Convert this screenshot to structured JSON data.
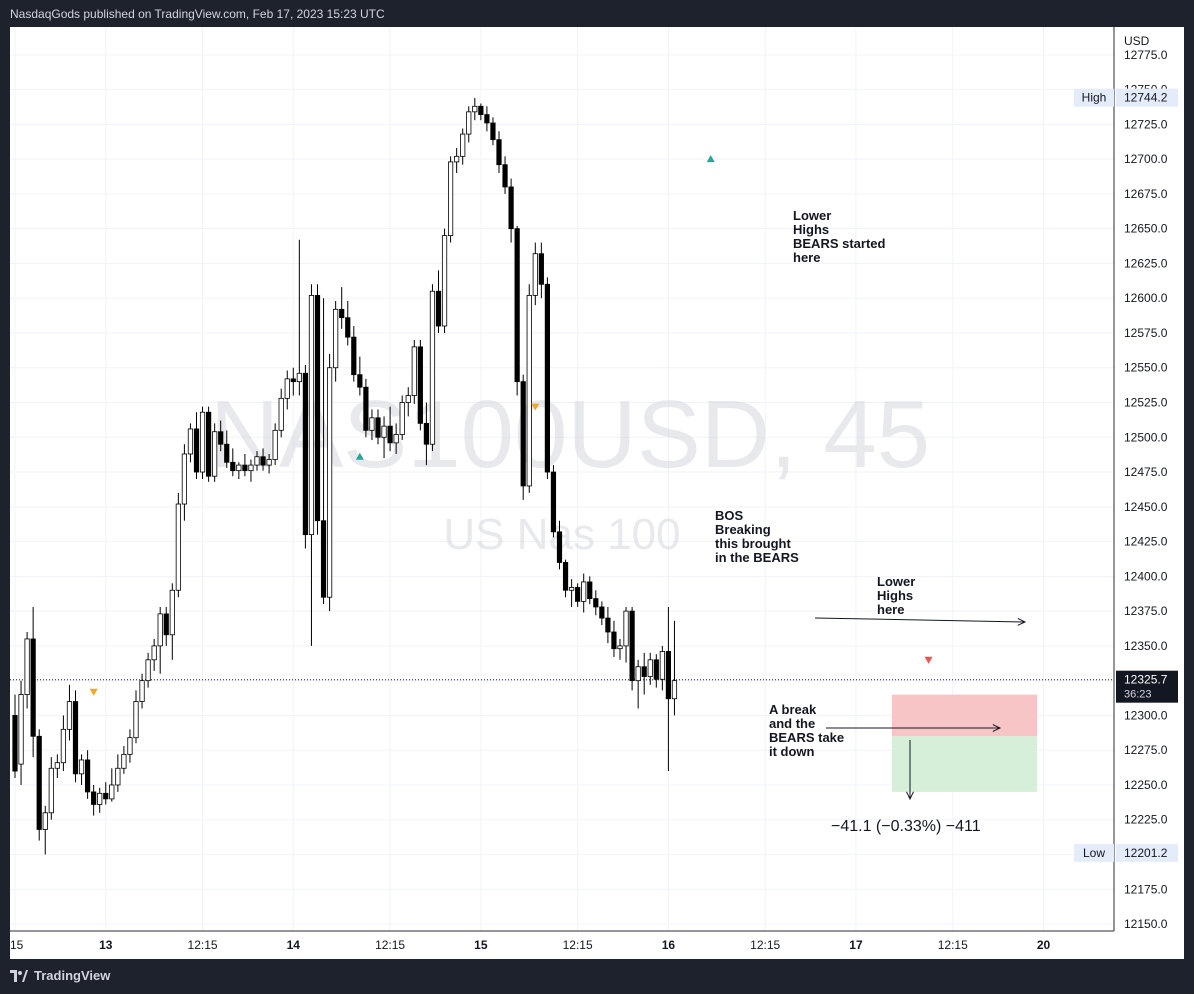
{
  "header": {
    "published": "NasdaqGods published on TradingView.com, Feb 17, 2023 15:23 UTC"
  },
  "footer": {
    "brand": "TradingView"
  },
  "chart_data": {
    "type": "candlestick",
    "symbol_watermark": "NAS100USD, 45",
    "subtitle_watermark": "US Nas 100",
    "currency": "USD",
    "y_ticks": [
      "12775.0",
      "12750.0",
      "12725.0",
      "12700.0",
      "12675.0",
      "12650.0",
      "12625.0",
      "12600.0",
      "12575.0",
      "12550.0",
      "12525.0",
      "12500.0",
      "12475.0",
      "12450.0",
      "12425.0",
      "12400.0",
      "12375.0",
      "12350.0",
      "12325.0",
      "12300.0",
      "12275.0",
      "12250.0",
      "12225.0",
      "12200.0",
      "12175.0",
      "12150.0"
    ],
    "y_tick_values": [
      12775,
      12750,
      12725,
      12700,
      12675,
      12650,
      12625,
      12600,
      12575,
      12550,
      12525,
      12500,
      12475,
      12450,
      12425,
      12400,
      12375,
      12350,
      12325,
      12300,
      12275,
      12250,
      12225,
      12200,
      12175,
      12150
    ],
    "ylim": [
      12145,
      12795
    ],
    "x_ticks": [
      {
        "label": ":15",
        "slot": 0
      },
      {
        "label": "13",
        "slot": 15
      },
      {
        "label": "12:15",
        "slot": 31
      },
      {
        "label": "14",
        "slot": 46
      },
      {
        "label": "12:15",
        "slot": 62
      },
      {
        "label": "15",
        "slot": 77
      },
      {
        "label": "12:15",
        "slot": 93
      },
      {
        "label": "16",
        "slot": 108
      },
      {
        "label": "12:15",
        "slot": 124
      },
      {
        "label": "17",
        "slot": 139
      },
      {
        "label": "12:15",
        "slot": 155
      },
      {
        "label": "20",
        "slot": 170
      }
    ],
    "high": {
      "label": "High",
      "value": "12744.2"
    },
    "low": {
      "label": "Low",
      "value": "12201.2"
    },
    "last": {
      "value": "12325.7",
      "countdown": "36:23",
      "price": 12325.7
    },
    "annotations": [
      {
        "text": [
          "Lower",
          "Highs",
          "BEARS started",
          "here"
        ]
      },
      {
        "text": [
          "BOS",
          "Breaking",
          "this brought",
          "in the BEARS"
        ]
      },
      {
        "text": [
          "Lower",
          "Highs",
          "here"
        ]
      },
      {
        "text": [
          "A break",
          "and the",
          "BEARS take",
          "it down"
        ]
      }
    ],
    "position_label": "−41.1 (−0.33%) −411",
    "position": {
      "entry": 12305,
      "stop": 12285,
      "target": 12245
    },
    "colors": {
      "up": "#ffffff",
      "down": "#000000",
      "stop_zone": "#f7c5c5",
      "target_zone": "#d6efd8",
      "axis_bg": "#ffffff",
      "high_low_tag": "#e3ecf8"
    },
    "candles": [
      [
        12300,
        12315,
        12255,
        12260
      ],
      [
        12265,
        12325,
        12250,
        12315
      ],
      [
        12315,
        12360,
        12305,
        12355
      ],
      [
        12355,
        12378,
        12270,
        12285
      ],
      [
        12285,
        12290,
        12210,
        12218
      ],
      [
        12218,
        12235,
        12200,
        12230
      ],
      [
        12230,
        12270,
        12225,
        12262
      ],
      [
        12262,
        12272,
        12255,
        12266
      ],
      [
        12266,
        12300,
        12260,
        12290
      ],
      [
        12290,
        12322,
        12282,
        12310
      ],
      [
        12310,
        12318,
        12252,
        12258
      ],
      [
        12258,
        12272,
        12250,
        12268
      ],
      [
        12268,
        12275,
        12240,
        12245
      ],
      [
        12245,
        12250,
        12228,
        12236
      ],
      [
        12236,
        12248,
        12230,
        12244
      ],
      [
        12244,
        12252,
        12236,
        12240
      ],
      [
        12240,
        12262,
        12238,
        12250
      ],
      [
        12250,
        12272,
        12245,
        12262
      ],
      [
        12262,
        12278,
        12258,
        12272
      ],
      [
        12272,
        12290,
        12266,
        12284
      ],
      [
        12284,
        12318,
        12280,
        12310
      ],
      [
        12310,
        12330,
        12305,
        12325
      ],
      [
        12325,
        12345,
        12320,
        12340
      ],
      [
        12340,
        12355,
        12332,
        12350
      ],
      [
        12350,
        12378,
        12330,
        12373
      ],
      [
        12373,
        12378,
        12350,
        12358
      ],
      [
        12358,
        12395,
        12340,
        12390
      ],
      [
        12390,
        12460,
        12385,
        12452
      ],
      [
        12452,
        12495,
        12440,
        12488
      ],
      [
        12488,
        12510,
        12482,
        12506
      ],
      [
        12506,
        12518,
        12470,
        12475
      ],
      [
        12475,
        12522,
        12470,
        12518
      ],
      [
        12518,
        12522,
        12468,
        12472
      ],
      [
        12472,
        12510,
        12468,
        12504
      ],
      [
        12504,
        12512,
        12490,
        12495
      ],
      [
        12495,
        12505,
        12478,
        12482
      ],
      [
        12482,
        12492,
        12472,
        12476
      ],
      [
        12476,
        12482,
        12470,
        12480
      ],
      [
        12480,
        12488,
        12472,
        12476
      ],
      [
        12476,
        12484,
        12468,
        12480
      ],
      [
        12480,
        12490,
        12476,
        12486
      ],
      [
        12486,
        12492,
        12476,
        12480
      ],
      [
        12480,
        12488,
        12474,
        12484
      ],
      [
        12484,
        12510,
        12480,
        12505
      ],
      [
        12505,
        12535,
        12500,
        12528
      ],
      [
        12528,
        12548,
        12520,
        12542
      ],
      [
        12542,
        12550,
        12530,
        12540
      ],
      [
        12540,
        12642,
        12530,
        12546
      ],
      [
        12546,
        12552,
        12420,
        12430
      ],
      [
        12430,
        12610,
        12350,
        12602
      ],
      [
        12602,
        12610,
        12430,
        12440
      ],
      [
        12440,
        12600,
        12380,
        12385
      ],
      [
        12385,
        12560,
        12375,
        12550
      ],
      [
        12550,
        12598,
        12540,
        12592
      ],
      [
        12592,
        12608,
        12578,
        12586
      ],
      [
        12586,
        12598,
        12566,
        12572
      ],
      [
        12572,
        12580,
        12540,
        12545
      ],
      [
        12545,
        12558,
        12530,
        12536
      ],
      [
        12536,
        12542,
        12500,
        12505
      ],
      [
        12505,
        12520,
        12498,
        12514
      ],
      [
        12514,
        12520,
        12495,
        12500
      ],
      [
        12500,
        12515,
        12485,
        12508
      ],
      [
        12508,
        12522,
        12490,
        12496
      ],
      [
        12496,
        12510,
        12488,
        12502
      ],
      [
        12502,
        12530,
        12498,
        12525
      ],
      [
        12525,
        12536,
        12515,
        12530
      ],
      [
        12530,
        12570,
        12524,
        12565
      ],
      [
        12565,
        12570,
        12505,
        12510
      ],
      [
        12510,
        12525,
        12480,
        12495
      ],
      [
        12495,
        12610,
        12490,
        12605
      ],
      [
        12605,
        12620,
        12575,
        12580
      ],
      [
        12580,
        12650,
        12575,
        12645
      ],
      [
        12645,
        12702,
        12640,
        12698
      ],
      [
        12698,
        12708,
        12690,
        12702
      ],
      [
        12702,
        12722,
        12696,
        12718
      ],
      [
        12718,
        12738,
        12712,
        12734
      ],
      [
        12734,
        12744,
        12728,
        12738
      ],
      [
        12738,
        12740,
        12728,
        12732
      ],
      [
        12732,
        12738,
        12720,
        12726
      ],
      [
        12726,
        12730,
        12710,
        12714
      ],
      [
        12714,
        12720,
        12690,
        12696
      ],
      [
        12696,
        12702,
        12675,
        12680
      ],
      [
        12680,
        12686,
        12640,
        12650
      ],
      [
        12650,
        12652,
        12530,
        12540
      ],
      [
        12540,
        12545,
        12455,
        12465
      ],
      [
        12465,
        12610,
        12460,
        12602
      ],
      [
        12602,
        12640,
        12595,
        12632
      ],
      [
        12632,
        12640,
        12600,
        12610
      ],
      [
        12610,
        12615,
        12470,
        12475
      ],
      [
        12475,
        12480,
        12428,
        12432
      ],
      [
        12432,
        12440,
        12405,
        12410
      ],
      [
        12410,
        12412,
        12385,
        12390
      ],
      [
        12390,
        12398,
        12378,
        12392
      ],
      [
        12392,
        12395,
        12378,
        12382
      ],
      [
        12382,
        12402,
        12374,
        12396
      ],
      [
        12396,
        12400,
        12380,
        12384
      ],
      [
        12384,
        12390,
        12372,
        12378
      ],
      [
        12378,
        12382,
        12365,
        12370
      ],
      [
        12370,
        12378,
        12352,
        12360
      ],
      [
        12360,
        12368,
        12342,
        12348
      ],
      [
        12348,
        12355,
        12340,
        12350
      ],
      [
        12350,
        12378,
        12338,
        12375
      ],
      [
        12375,
        12378,
        12318,
        12325
      ],
      [
        12325,
        12340,
        12305,
        12335
      ],
      [
        12335,
        12345,
        12315,
        12328
      ],
      [
        12328,
        12345,
        12322,
        12340
      ],
      [
        12340,
        12344,
        12320,
        12326
      ],
      [
        12326,
        12350,
        12318,
        12346
      ],
      [
        12346,
        12378,
        12260,
        12312
      ],
      [
        12312,
        12368,
        12300,
        12325
      ]
    ]
  }
}
